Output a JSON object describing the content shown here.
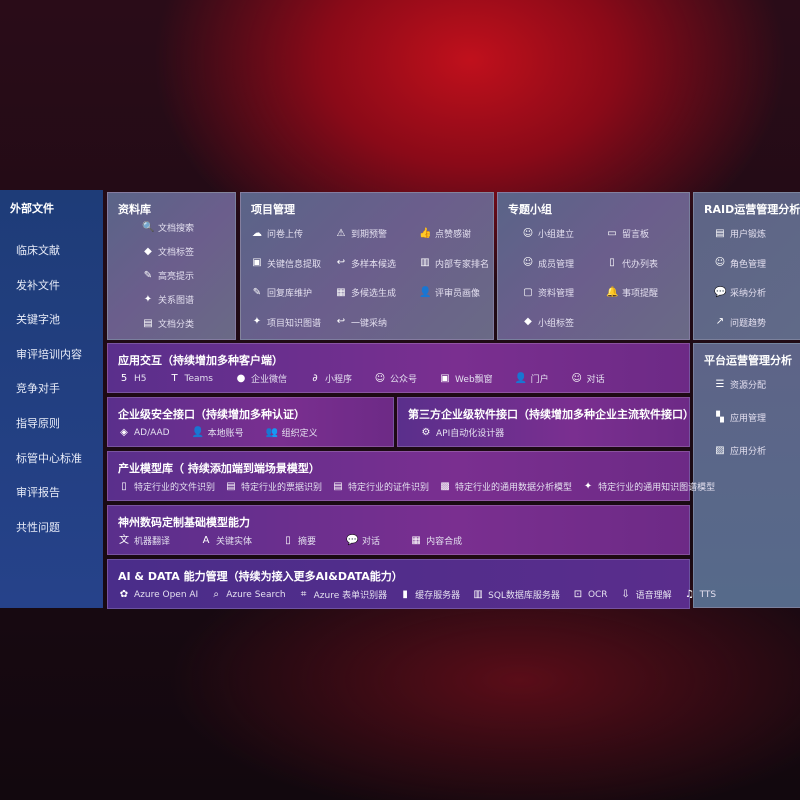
{
  "sidebar": {
    "title": "外部文件",
    "items": [
      "临床文献",
      "发补文件",
      "关键字池",
      "审评培训内容",
      "竞争对手",
      "指导原则",
      "标管中心标准",
      "审评报告",
      "共性问题"
    ]
  },
  "library": {
    "title": "资料库",
    "items": [
      {
        "icon": "document-search-icon",
        "label": "文档搜索"
      },
      {
        "icon": "tag-icon",
        "label": "文档标签"
      },
      {
        "icon": "pen-icon",
        "label": "高亮提示"
      },
      {
        "icon": "graph-icon",
        "label": "关系图谱"
      },
      {
        "icon": "document-copy-icon",
        "label": "文档分类"
      }
    ]
  },
  "project": {
    "title": "项目管理",
    "items": [
      {
        "icon": "cloud-upload-icon",
        "label": "问卷上传"
      },
      {
        "icon": "alarm-icon",
        "label": "到期预警"
      },
      {
        "icon": "thumbs-up-icon",
        "label": "点赞感谢"
      },
      {
        "icon": "window-icon",
        "label": "关键信息提取"
      },
      {
        "icon": "reply-icon",
        "label": "多样本候选"
      },
      {
        "icon": "ranking-icon",
        "label": "内部专家排名"
      },
      {
        "icon": "edit-icon",
        "label": "回复库维护"
      },
      {
        "icon": "puzzle-icon",
        "label": "多候选生成"
      },
      {
        "icon": "user-icon",
        "label": "评审员画像"
      },
      {
        "icon": "graph-icon",
        "label": "项目知识图谱"
      },
      {
        "icon": "reply-icon",
        "label": "一键采纳"
      }
    ]
  },
  "group": {
    "title": "专题小组",
    "items": [
      {
        "icon": "users-icon",
        "label": "小组建立"
      },
      {
        "icon": "bbs-icon",
        "label": "留言板"
      },
      {
        "icon": "user-add-icon",
        "label": "成员管理"
      },
      {
        "icon": "clipboard-icon",
        "label": "代办列表"
      },
      {
        "icon": "folder-icon",
        "label": "资料管理"
      },
      {
        "icon": "bell-icon",
        "label": "事项提醒"
      },
      {
        "icon": "tag-icon",
        "label": "小组标签"
      }
    ]
  },
  "raid": {
    "title": "RAID运营管理分析",
    "items": [
      {
        "icon": "id-card-icon",
        "label": "用户锻炼"
      },
      {
        "icon": "users-icon",
        "label": "角色管理"
      },
      {
        "icon": "qa-icon",
        "label": "采纳分析"
      },
      {
        "icon": "trend-icon",
        "label": "问题趋势"
      }
    ]
  },
  "platform": {
    "title": "平台运营管理分析",
    "items": [
      {
        "icon": "list-icon",
        "label": "资源分配"
      },
      {
        "icon": "apps-icon",
        "label": "应用管理"
      },
      {
        "icon": "chart-icon",
        "label": "应用分析"
      }
    ]
  },
  "app": {
    "title": "应用交互（持续增加多种客户端）",
    "items": [
      {
        "icon": "html5-icon",
        "label": "H5"
      },
      {
        "icon": "teams-icon",
        "label": "Teams"
      },
      {
        "icon": "wecom-icon",
        "label": "企业微信"
      },
      {
        "icon": "miniprogram-icon",
        "label": "小程序"
      },
      {
        "icon": "users-icon",
        "label": "公众号"
      },
      {
        "icon": "window-icon",
        "label": "Web飘窗"
      },
      {
        "icon": "portal-icon",
        "label": "门户"
      },
      {
        "icon": "chat-users-icon",
        "label": "对话"
      }
    ]
  },
  "security": {
    "title": "企业级安全接口（持续增加多种认证）",
    "items": [
      {
        "icon": "aad-icon",
        "label": "AD/AAD"
      },
      {
        "icon": "user-icon",
        "label": "本地账号"
      },
      {
        "icon": "org-icon",
        "label": "组织定义"
      }
    ]
  },
  "thirdparty": {
    "title": "第三方企业级软件接口（持续增加多种企业主流软件接口）",
    "items": [
      {
        "icon": "gear-icon",
        "label": "API自动化设计器"
      }
    ]
  },
  "industry": {
    "title": "产业模型库（ 持续添加端到端场景模型）",
    "items": [
      {
        "icon": "document-icon",
        "label": "特定行业的文件识别"
      },
      {
        "icon": "receipt-icon",
        "label": "特定行业的票据识别"
      },
      {
        "icon": "id-card-icon",
        "label": "特定行业的证件识别"
      },
      {
        "icon": "image-icon",
        "label": "特定行业的通用数据分析模型"
      },
      {
        "icon": "graph-icon",
        "label": "特定行业的通用知识图谱模型"
      }
    ]
  },
  "base": {
    "title": "神州数码定制基础模型能力",
    "items": [
      {
        "icon": "translate-icon",
        "label": "机器翻译"
      },
      {
        "icon": "entity-icon",
        "label": "关键实体"
      },
      {
        "icon": "summary-icon",
        "label": "摘要"
      },
      {
        "icon": "chat-icon",
        "label": "对话"
      },
      {
        "icon": "puzzle-icon",
        "label": "内容合成"
      }
    ]
  },
  "ai": {
    "title": "AI & DATA 能力管理（持续为接入更多AI&DATA能力）",
    "items": [
      {
        "icon": "openai-icon",
        "label": "Azure Open AI"
      },
      {
        "icon": "search-icon",
        "label": "Azure Search"
      },
      {
        "icon": "form-icon",
        "label": "Azure 表单识别器"
      },
      {
        "icon": "cache-icon",
        "label": "缓存服务器"
      },
      {
        "icon": "database-icon",
        "label": "SQL数据库服务器"
      },
      {
        "icon": "ocr-icon",
        "label": "OCR"
      },
      {
        "icon": "speech-icon",
        "label": "语音理解"
      },
      {
        "icon": "tts-icon",
        "label": "TTS"
      }
    ]
  }
}
